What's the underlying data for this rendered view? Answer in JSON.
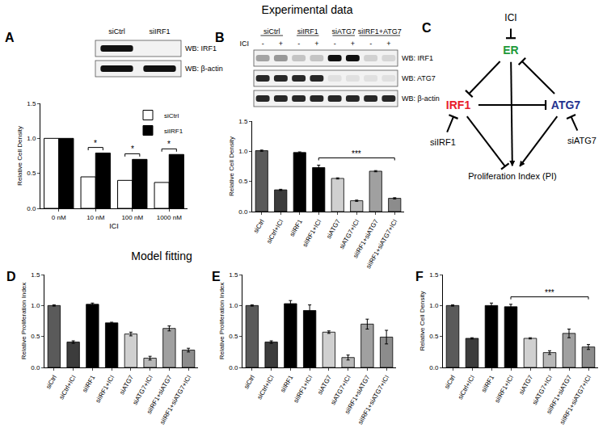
{
  "headings": [
    "Experimental data",
    "Model fitting"
  ],
  "panel_labels": [
    "A",
    "B",
    "C",
    "D",
    "E",
    "F"
  ],
  "blots": [
    {
      "panel": "A",
      "lanes": [
        "siCtrl",
        "siIRF1"
      ],
      "rows": [
        {
          "label": "WB: IRF1",
          "bands": [
            1,
            0
          ]
        },
        {
          "label": "WB: β-actin",
          "bands": [
            1,
            1
          ]
        }
      ]
    },
    {
      "panel": "B",
      "groups": [
        "siCtrl",
        "siIRF1",
        "siATG7",
        "siIRF1+ATG7"
      ],
      "treatment": "ICI",
      "treatment_lanes": [
        "-",
        "+",
        "-",
        "+",
        "-",
        "+",
        "-",
        "+"
      ],
      "rows": [
        {
          "label": "WB: IRF1",
          "bands": [
            0.35,
            0.4,
            0.2,
            0.2,
            1,
            1,
            0.15,
            0.12
          ]
        },
        {
          "label": "WB: ATG7",
          "bands": [
            0.9,
            0.9,
            0.9,
            0.9,
            0.08,
            0.08,
            0.08,
            0.08
          ]
        },
        {
          "label": "WB: β-actin",
          "bands": [
            0.9,
            0.9,
            0.9,
            0.9,
            0.9,
            0.9,
            0.9,
            0.9
          ]
        }
      ]
    }
  ],
  "diagram": {
    "panel": "C",
    "nodes": [
      {
        "label": "ICI",
        "color": "#000000"
      },
      {
        "label": "ER",
        "color": "#1e9a3a"
      },
      {
        "label": "IRF1",
        "color": "#e8202a"
      },
      {
        "label": "ATG7",
        "color": "#23318f"
      },
      {
        "label": "siIRF1",
        "color": "#000000"
      },
      {
        "label": "siATG7",
        "color": "#000000"
      },
      {
        "label": "Proliferation Index (PI)",
        "color": "#000000"
      }
    ],
    "edges": [
      {
        "from": "ICI",
        "to": "ER",
        "kind": "inhibit"
      },
      {
        "from": "ER",
        "to": "IRF1",
        "kind": "inhibit"
      },
      {
        "from": "ATG7",
        "to": "ER",
        "kind": "inhibit"
      },
      {
        "from": "IRF1",
        "to": "ATG7",
        "kind": "inhibit"
      },
      {
        "from": "ER",
        "to": "Proliferation Index (PI)",
        "kind": "activate"
      },
      {
        "from": "IRF1",
        "to": "Proliferation Index (PI)",
        "kind": "inhibit"
      },
      {
        "from": "ATG7",
        "to": "Proliferation Index (PI)",
        "kind": "activate"
      },
      {
        "from": "siIRF1",
        "to": "IRF1",
        "kind": "inhibit"
      },
      {
        "from": "siATG7",
        "to": "ATG7",
        "kind": "inhibit"
      }
    ]
  },
  "chart_data": [
    {
      "panel": "A",
      "type": "bar",
      "categories": [
        "0 nM",
        "10 nM",
        "100 nM",
        "1000 nM"
      ],
      "x_label": "ICI",
      "y_label": "Relative Cell Density",
      "series": [
        {
          "name": "siCtrl",
          "color": "#ffffff",
          "values": [
            1,
            0.45,
            0.4,
            0.37
          ]
        },
        {
          "name": "siIRF1",
          "color": "#000000",
          "values": [
            1,
            0.79,
            0.7,
            0.77
          ]
        }
      ],
      "ylim": [
        0,
        1.5
      ],
      "yticks": [
        {
          "value": 0,
          "label": "0.0"
        },
        {
          "value": 0.5,
          "label": "0.5"
        },
        {
          "value": 1,
          "label": "1.0"
        },
        {
          "value": 1.5,
          "label": "1.5"
        }
      ],
      "grid": false,
      "legend": "top right",
      "annotations": [
        {
          "text": "*",
          "from": "10 nM",
          "to": "10 nM"
        },
        {
          "text": "*",
          "from": "100 nM",
          "to": "100 nM"
        },
        {
          "text": "*",
          "from": "1000 nM",
          "to": "1000 nM"
        }
      ]
    },
    {
      "panel": "B",
      "type": "bar",
      "categories": [
        "siCtrl",
        "siCtrl+ICI",
        "siIRF1",
        "siIRF1+ICI",
        "siATG7",
        "siATG7+ICI",
        "siIRF1+siATG7",
        "siIRF1+siATG7+ICI"
      ],
      "y_label": "Relative Cell Density",
      "values": [
        1.01,
        0.36,
        0.98,
        0.73,
        0.55,
        0.18,
        0.67,
        0.22
      ],
      "errors": [
        0.01,
        0.01,
        0.01,
        0.04,
        0.01,
        0.01,
        0.01,
        0.01
      ],
      "colors": [
        "#5a5a5a",
        "#3c3c3c",
        "#000000",
        "#000000",
        "#d0d0d0",
        "#b8b8b8",
        "#a0a0a0",
        "#8c8c8c"
      ],
      "ylim": [
        0,
        1.5
      ],
      "yticks": [
        {
          "value": 0,
          "label": "0.0"
        },
        {
          "value": 0.5,
          "label": "0.5"
        },
        {
          "value": 1,
          "label": "1.0"
        },
        {
          "value": 1.5,
          "label": "1.5"
        }
      ],
      "grid": false,
      "annotations": [
        {
          "text": "***",
          "from": "siIRF1+ICI",
          "to": "siIRF1+siATG7+ICI"
        }
      ]
    },
    {
      "panel": "D",
      "type": "bar",
      "categories": [
        "siCtrl",
        "siCtrl+ICI",
        "siIRF1",
        "siIRF1+ICI",
        "siATG7",
        "siATG7+ICI",
        "siIRF1+siATG7",
        "siIRF1+siATG7+ICI"
      ],
      "y_label": "Relative Proliferation Index",
      "values": [
        1.0,
        0.41,
        1.02,
        0.72,
        0.54,
        0.15,
        0.63,
        0.28
      ],
      "errors": [
        0.01,
        0.02,
        0.02,
        0.01,
        0.03,
        0.03,
        0.04,
        0.03
      ],
      "colors": [
        "#5a5a5a",
        "#3c3c3c",
        "#000000",
        "#000000",
        "#d0d0d0",
        "#b8b8b8",
        "#a0a0a0",
        "#8c8c8c"
      ],
      "ylim": [
        0,
        1.5
      ],
      "yticks": [
        {
          "value": 0,
          "label": "0.0"
        },
        {
          "value": 0.5,
          "label": "0.5"
        },
        {
          "value": 1,
          "label": "1.0"
        },
        {
          "value": 1.5,
          "label": "1.5"
        }
      ],
      "grid": false
    },
    {
      "panel": "E",
      "type": "bar",
      "categories": [
        "siCtrl",
        "siCtrl+ICI",
        "siIRF1",
        "siIRF1+ICI",
        "siATG7",
        "siATG7+ICI",
        "siIRF1+siATG7",
        "siIRF1+siATG7+ICI"
      ],
      "y_label": "Relative Proliferation Index",
      "values": [
        1.0,
        0.41,
        1.03,
        0.92,
        0.57,
        0.16,
        0.7,
        0.49
      ],
      "errors": [
        0.01,
        0.02,
        0.05,
        0.09,
        0.02,
        0.04,
        0.08,
        0.11
      ],
      "colors": [
        "#5a5a5a",
        "#3c3c3c",
        "#000000",
        "#000000",
        "#d0d0d0",
        "#b8b8b8",
        "#a0a0a0",
        "#8c8c8c"
      ],
      "ylim": [
        0,
        1.5
      ],
      "yticks": [
        {
          "value": 0,
          "label": "0.0"
        },
        {
          "value": 0.5,
          "label": "0.5"
        },
        {
          "value": 1,
          "label": "1.0"
        },
        {
          "value": 1.5,
          "label": "1.5"
        }
      ],
      "grid": false
    },
    {
      "panel": "F",
      "type": "bar",
      "categories": [
        "siCtrl",
        "siCtrl+ICI",
        "siIRF1",
        "siIRF1+ICI",
        "siATG7",
        "siATG7+ICI",
        "siIRF1+siATG7",
        "siIRF1+siATG7+ICI"
      ],
      "y_label": "Relative Cell Density",
      "values": [
        1.0,
        0.47,
        1.0,
        0.98,
        0.47,
        0.24,
        0.55,
        0.33
      ],
      "errors": [
        0.01,
        0.01,
        0.04,
        0.04,
        0.01,
        0.03,
        0.07,
        0.04
      ],
      "colors": [
        "#5a5a5a",
        "#3c3c3c",
        "#000000",
        "#000000",
        "#d0d0d0",
        "#b8b8b8",
        "#a0a0a0",
        "#8c8c8c"
      ],
      "ylim": [
        0,
        1.5
      ],
      "yticks": [
        {
          "value": 0,
          "label": "0.0"
        },
        {
          "value": 0.5,
          "label": "0.5"
        },
        {
          "value": 1,
          "label": "1.0"
        },
        {
          "value": 1.5,
          "label": "1.5"
        }
      ],
      "grid": false,
      "annotations": [
        {
          "text": "***",
          "from": "siIRF1+ICI",
          "to": "siIRF1+siATG7+ICI"
        }
      ]
    }
  ]
}
